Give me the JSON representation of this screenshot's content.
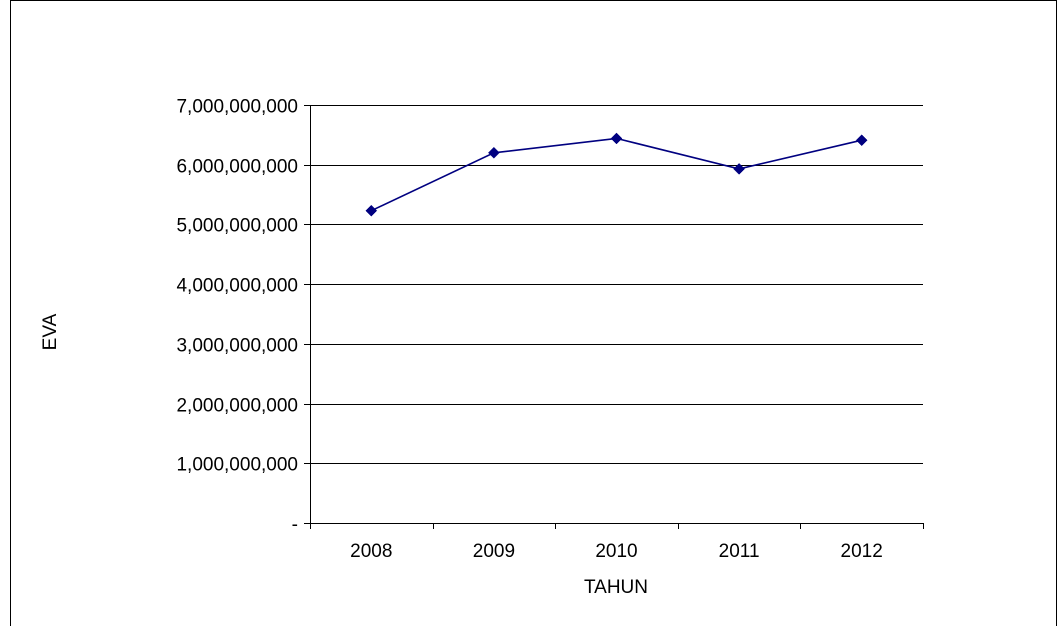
{
  "chart_data": {
    "type": "line",
    "title": "",
    "xlabel": "TAHUN",
    "ylabel": "EVA",
    "categories": [
      "2008",
      "2009",
      "2010",
      "2011",
      "2012"
    ],
    "series": [
      {
        "values": [
          5230000000,
          6200000000,
          6440000000,
          5930000000,
          6410000000
        ]
      }
    ],
    "ylim": [
      0,
      7000000000
    ],
    "yticks": [
      0,
      1000000000,
      2000000000,
      3000000000,
      4000000000,
      5000000000,
      6000000000,
      7000000000
    ],
    "ytick_labels": [
      "-",
      "1,000,000,000",
      "2,000,000,000",
      "3,000,000,000",
      "4,000,000,000",
      "5,000,000,000",
      "6,000,000,000",
      "7,000,000,000"
    ],
    "grid": true,
    "legend": "none",
    "marker": "diamond",
    "colors": {
      "series": "#000080",
      "grid": "#000000",
      "axis": "#000000"
    }
  }
}
